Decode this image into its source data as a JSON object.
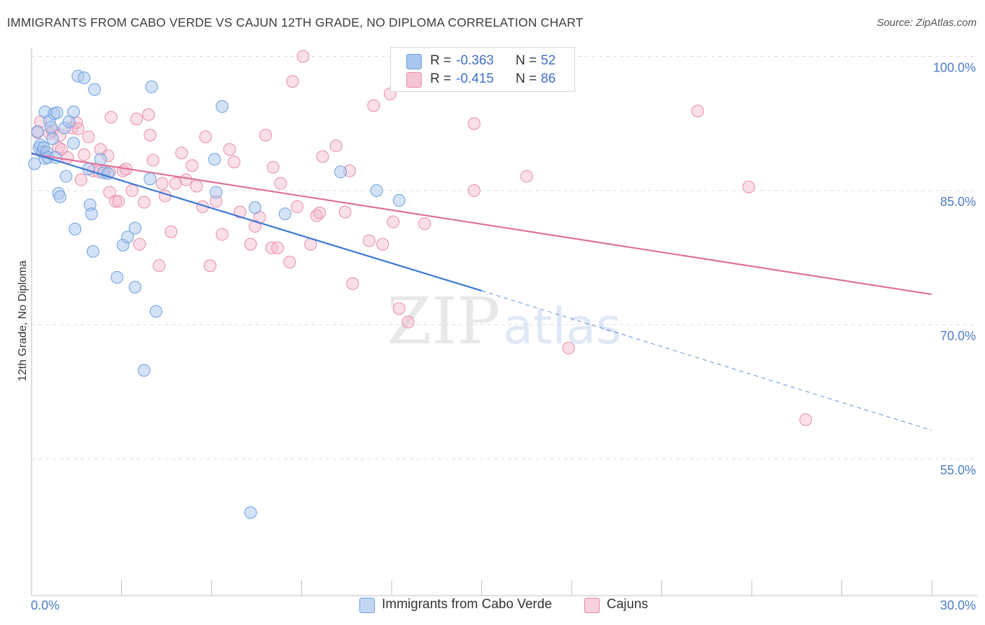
{
  "title": "IMMIGRANTS FROM CABO VERDE VS CAJUN 12TH GRADE, NO DIPLOMA CORRELATION CHART",
  "source": "Source: ZipAtlas.com",
  "watermark": {
    "zip": "ZIP",
    "atlas": "atlas"
  },
  "colors": {
    "blue_fill": "#aac6ef",
    "blue_stroke": "#6a9fdf",
    "blue_line": "#3a78d4",
    "pink_fill": "#f5b8cb",
    "pink_stroke": "#e88aa8",
    "pink_line": "#e0709a",
    "tick_label": "#4a7cc7",
    "grid": "#dddddd"
  },
  "legend": {
    "r_label": "R =",
    "n_label": "N =",
    "series": [
      {
        "r": "-0.363",
        "n": "52"
      },
      {
        "r": "-0.415",
        "n": "86"
      }
    ]
  },
  "bottom_legend": [
    "Immigrants from Cabo Verde",
    "Cajuns"
  ],
  "chart_data": {
    "type": "scatter",
    "title": "IMMIGRANTS FROM CABO VERDE VS CAJUN 12TH GRADE, NO DIPLOMA CORRELATION CHART",
    "xlabel": "",
    "ylabel": "12th Grade, No Diploma",
    "xlim": [
      0,
      30
    ],
    "ylim": [
      40,
      102.5
    ],
    "x_tick_labels": [
      "0.0%",
      "30.0%"
    ],
    "y_ticks": [
      55,
      70,
      85,
      100
    ],
    "y_tick_labels": [
      "55.0%",
      "70.0%",
      "85.0%",
      "100.0%"
    ],
    "series": [
      {
        "name": "Immigrants from Cabo Verde",
        "color": "blue",
        "r": -0.363,
        "n": 52,
        "trend": {
          "x0": 0,
          "y0": 89.2,
          "x1": 15,
          "y1": 73.8,
          "dash_to_x": 30,
          "dash_to_y": 58.2
        },
        "points": [
          [
            0.1,
            88.0
          ],
          [
            0.2,
            91.6
          ],
          [
            0.25,
            89.8
          ],
          [
            0.3,
            90.1
          ],
          [
            0.35,
            89.3
          ],
          [
            0.4,
            89.8
          ],
          [
            0.45,
            88.6
          ],
          [
            0.45,
            93.8
          ],
          [
            0.5,
            89.3
          ],
          [
            0.55,
            88.7
          ],
          [
            0.6,
            92.8
          ],
          [
            0.65,
            92.1
          ],
          [
            0.7,
            90.8
          ],
          [
            0.75,
            93.6
          ],
          [
            0.8,
            88.7
          ],
          [
            0.85,
            93.7
          ],
          [
            0.9,
            84.7
          ],
          [
            0.95,
            84.3
          ],
          [
            1.1,
            92.0
          ],
          [
            1.15,
            86.6
          ],
          [
            1.25,
            92.7
          ],
          [
            1.4,
            90.3
          ],
          [
            1.4,
            93.8
          ],
          [
            1.45,
            80.7
          ],
          [
            1.55,
            97.8
          ],
          [
            1.75,
            97.6
          ],
          [
            1.9,
            87.4
          ],
          [
            1.95,
            83.4
          ],
          [
            2.0,
            82.4
          ],
          [
            2.05,
            78.2
          ],
          [
            2.1,
            96.3
          ],
          [
            2.3,
            88.5
          ],
          [
            2.4,
            87.0
          ],
          [
            2.55,
            86.9
          ],
          [
            2.85,
            75.3
          ],
          [
            3.05,
            78.9
          ],
          [
            3.2,
            79.8
          ],
          [
            3.45,
            80.8
          ],
          [
            3.45,
            74.2
          ],
          [
            3.75,
            64.9
          ],
          [
            3.95,
            86.3
          ],
          [
            4.0,
            96.6
          ],
          [
            4.15,
            71.5
          ],
          [
            6.1,
            88.5
          ],
          [
            6.15,
            84.8
          ],
          [
            6.35,
            94.4
          ],
          [
            7.3,
            49.0
          ],
          [
            7.45,
            83.1
          ],
          [
            8.45,
            82.4
          ],
          [
            10.3,
            87.1
          ],
          [
            11.5,
            85.0
          ],
          [
            12.25,
            83.9
          ]
        ]
      },
      {
        "name": "Cajuns",
        "color": "pink",
        "r": -0.415,
        "n": 86,
        "trend": {
          "x0": 0,
          "y0": 89.1,
          "x1": 30,
          "y1": 73.4
        },
        "points": [
          [
            0.2,
            91.5
          ],
          [
            0.3,
            92.7
          ],
          [
            0.4,
            89.3
          ],
          [
            0.6,
            91.4
          ],
          [
            0.7,
            91.7
          ],
          [
            0.9,
            89.8
          ],
          [
            1.0,
            89.6
          ],
          [
            1.2,
            88.7
          ],
          [
            1.35,
            92.0
          ],
          [
            1.5,
            92.6
          ],
          [
            1.65,
            86.2
          ],
          [
            1.75,
            89.0
          ],
          [
            1.9,
            91.0
          ],
          [
            2.05,
            87.2
          ],
          [
            2.3,
            89.6
          ],
          [
            2.45,
            87.2
          ],
          [
            2.55,
            88.9
          ],
          [
            2.6,
            84.8
          ],
          [
            2.6,
            87.1
          ],
          [
            2.65,
            93.2
          ],
          [
            2.8,
            83.8
          ],
          [
            2.9,
            83.8
          ],
          [
            3.05,
            87.2
          ],
          [
            3.15,
            87.4
          ],
          [
            3.35,
            85.0
          ],
          [
            3.5,
            93.0
          ],
          [
            3.6,
            79.0
          ],
          [
            3.75,
            83.7
          ],
          [
            3.9,
            93.5
          ],
          [
            3.95,
            91.2
          ],
          [
            4.05,
            88.4
          ],
          [
            4.25,
            76.6
          ],
          [
            4.35,
            85.8
          ],
          [
            4.45,
            84.4
          ],
          [
            4.65,
            80.4
          ],
          [
            4.8,
            85.8
          ],
          [
            5.0,
            89.2
          ],
          [
            5.15,
            86.2
          ],
          [
            5.35,
            87.8
          ],
          [
            5.5,
            85.5
          ],
          [
            5.7,
            83.2
          ],
          [
            5.8,
            91.0
          ],
          [
            5.95,
            76.6
          ],
          [
            6.15,
            83.8
          ],
          [
            6.35,
            80.1
          ],
          [
            6.6,
            89.6
          ],
          [
            6.75,
            88.2
          ],
          [
            6.95,
            82.6
          ],
          [
            7.3,
            79.0
          ],
          [
            7.45,
            81.0
          ],
          [
            7.6,
            82.0
          ],
          [
            7.8,
            91.2
          ],
          [
            8.0,
            78.6
          ],
          [
            8.05,
            87.6
          ],
          [
            8.2,
            78.6
          ],
          [
            8.3,
            85.8
          ],
          [
            8.6,
            77.0
          ],
          [
            8.7,
            97.2
          ],
          [
            8.85,
            83.2
          ],
          [
            9.05,
            100.0
          ],
          [
            9.3,
            79.0
          ],
          [
            9.5,
            82.2
          ],
          [
            9.6,
            82.5
          ],
          [
            9.7,
            88.8
          ],
          [
            10.15,
            90.0
          ],
          [
            10.45,
            82.6
          ],
          [
            10.6,
            87.2
          ],
          [
            10.7,
            74.6
          ],
          [
            11.25,
            79.4
          ],
          [
            11.4,
            94.5
          ],
          [
            11.7,
            79.0
          ],
          [
            11.95,
            95.8
          ],
          [
            12.05,
            81.5
          ],
          [
            12.25,
            71.8
          ],
          [
            12.55,
            70.3
          ],
          [
            13.1,
            81.3
          ],
          [
            14.75,
            92.5
          ],
          [
            14.75,
            85.0
          ],
          [
            16.5,
            86.6
          ],
          [
            17.9,
            67.4
          ],
          [
            22.2,
            93.9
          ],
          [
            23.9,
            85.4
          ],
          [
            25.8,
            59.4
          ],
          [
            0.95,
            91.2
          ],
          [
            1.55,
            91.9
          ],
          [
            2.25,
            87.1
          ]
        ]
      }
    ]
  }
}
